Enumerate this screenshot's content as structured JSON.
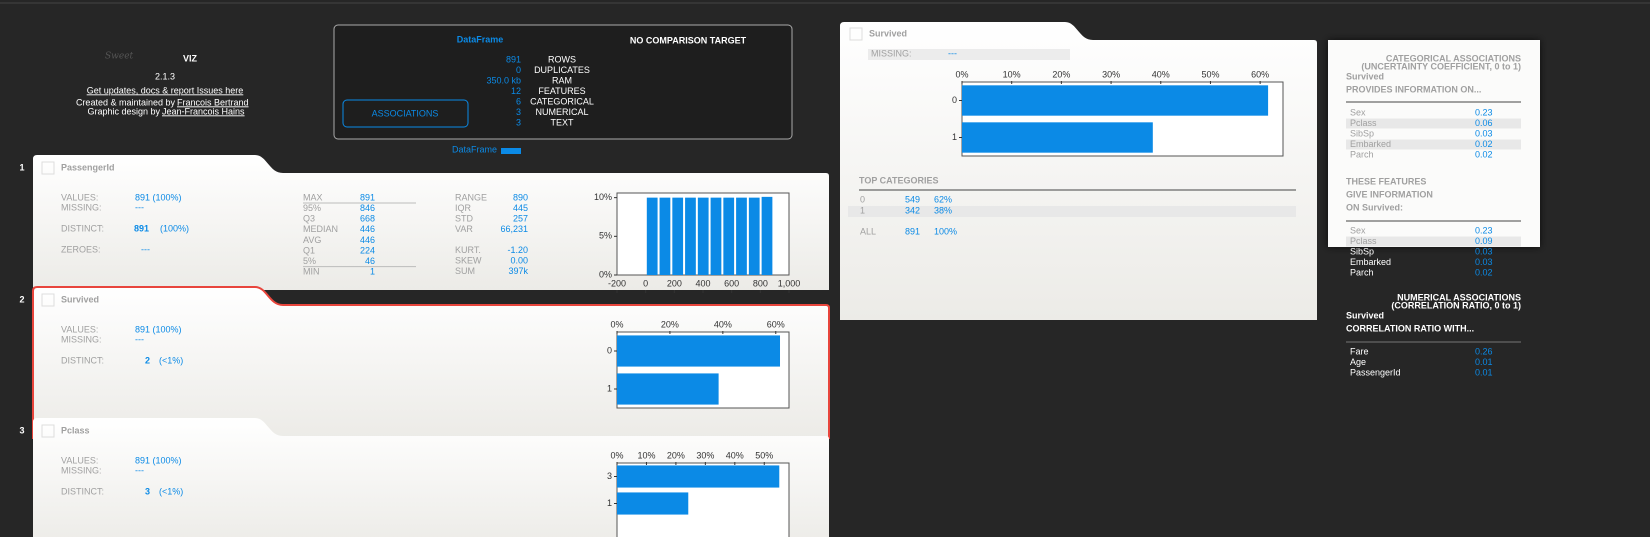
{
  "header": {
    "logo_sweet": "Sweet",
    "logo_viz": "VIZ",
    "version": "2.1.3",
    "link": "Get updates, docs & report Issues here",
    "created_by": "Created & maintained by",
    "author": "Francois Bertrand",
    "design_by": "Graphic design by",
    "designer": "Jean-Francois Hains"
  },
  "dataframe": {
    "title": "DataFrame",
    "stats": [
      {
        "value": "891",
        "label": "ROWS"
      },
      {
        "value": "0",
        "label": "DUPLICATES"
      },
      {
        "value": "350.0 kb",
        "label": "RAM"
      },
      {
        "value": "12",
        "label": "FEATURES"
      },
      {
        "value": "6",
        "label": "CATEGORICAL"
      },
      {
        "value": "3",
        "label": "NUMERICAL"
      },
      {
        "value": "3",
        "label": "TEXT"
      }
    ],
    "comparison": "NO COMPARISON TARGET",
    "button": "ASSOCIATIONS",
    "legend": "DataFrame",
    "legend_color": "#0b8ae6"
  },
  "features": [
    {
      "index": "1",
      "name": "PassengerId",
      "rows": [
        {
          "label": "VALUES:",
          "value": "891 (100%)"
        },
        {
          "label": "MISSING:",
          "value": "---"
        }
      ],
      "distinct": {
        "label": "DISTINCT:",
        "count": "891",
        "pct": "(100%)"
      },
      "zeroes": {
        "label": "ZEROES:",
        "value": "---"
      },
      "quantiles": [
        {
          "label": "MAX",
          "value": "891"
        },
        {
          "label": "95%",
          "value": "846"
        },
        {
          "label": "Q3",
          "value": "668"
        },
        {
          "label": "MEDIAN",
          "value": "446"
        },
        {
          "label": "AVG",
          "value": "446"
        },
        {
          "label": "Q1",
          "value": "224"
        },
        {
          "label": "5%",
          "value": "46"
        },
        {
          "label": "MIN",
          "value": "1"
        }
      ],
      "stats": [
        {
          "label": "RANGE",
          "value": "890"
        },
        {
          "label": "IQR",
          "value": "445"
        },
        {
          "label": "STD",
          "value": "257"
        },
        {
          "label": "VAR",
          "value": "66,231"
        },
        {
          "label": "KURT.",
          "value": "-1.20"
        },
        {
          "label": "SKEW",
          "value": "0.00"
        },
        {
          "label": "SUM",
          "value": "397k"
        }
      ],
      "chart": {
        "type": "histogram",
        "bins": [
          1,
          90,
          179,
          268,
          357,
          446,
          535,
          624,
          713,
          802,
          891
        ],
        "values": [
          10,
          10,
          10,
          10,
          10,
          10,
          10,
          10,
          10,
          10.1
        ],
        "color": "#0b8ae6",
        "xlim": [
          -200,
          1000
        ],
        "xticks": [
          -200,
          0,
          200,
          400,
          600,
          800,
          {
            "value": 1000,
            "label": "1,000"
          }
        ],
        "ylim": [
          0,
          10.6
        ],
        "yticks": [
          {
            "value": 0,
            "label": "0%"
          },
          {
            "value": 5,
            "label": "5%"
          },
          {
            "value": 10,
            "label": "10%"
          }
        ]
      }
    },
    {
      "index": "2",
      "name": "Survived",
      "selected": true,
      "rows": [
        {
          "label": "VALUES:",
          "value": "891 (100%)"
        },
        {
          "label": "MISSING:",
          "value": "---"
        }
      ],
      "distinct": {
        "label": "DISTINCT:",
        "count": "2",
        "pct": "(<1%)"
      },
      "chart": {
        "type": "hbar",
        "categories": [
          "0",
          "1"
        ],
        "values": [
          61.6,
          38.4
        ],
        "color": "#0b8ae6",
        "xlim": [
          0,
          65
        ],
        "xticks": [
          {
            "value": 0,
            "label": "0%"
          },
          {
            "value": 20,
            "label": "20%"
          },
          {
            "value": 40,
            "label": "40%"
          },
          {
            "value": 60,
            "label": "60%"
          }
        ]
      }
    },
    {
      "index": "3",
      "name": "Pclass",
      "rows": [
        {
          "label": "VALUES:",
          "value": "891 (100%)"
        },
        {
          "label": "MISSING:",
          "value": "---"
        }
      ],
      "distinct": {
        "label": "DISTINCT:",
        "count": "3",
        "pct": "(<1%)"
      },
      "chart": {
        "type": "hbar",
        "categories": [
          "3",
          "1"
        ],
        "values": [
          55.1,
          24.2
        ],
        "color": "#0b8ae6",
        "xlim": [
          0,
          58.4
        ],
        "xticks": [
          {
            "value": 0,
            "label": "0%"
          },
          {
            "value": 10,
            "label": "10%"
          },
          {
            "value": 20,
            "label": "20%"
          },
          {
            "value": 30,
            "label": "30%"
          },
          {
            "value": 40,
            "label": "40%"
          },
          {
            "value": 50,
            "label": "50%"
          }
        ]
      }
    }
  ],
  "detail": {
    "name": "Survived",
    "missing_label": "MISSING:",
    "missing_value": "---",
    "chart": {
      "type": "hbar",
      "categories": [
        "0",
        "1"
      ],
      "values": [
        61.6,
        38.4
      ],
      "color": "#0b8ae6",
      "xlim": [
        0,
        64.6
      ],
      "xticks": [
        {
          "value": 0,
          "label": "0%"
        },
        {
          "value": 10,
          "label": "10%"
        },
        {
          "value": 20,
          "label": "20%"
        },
        {
          "value": 30,
          "label": "30%"
        },
        {
          "value": 40,
          "label": "40%"
        },
        {
          "value": 50,
          "label": "50%"
        },
        {
          "value": 60,
          "label": "60%"
        }
      ]
    },
    "top_title": "TOP CATEGORIES",
    "top": [
      [
        "0",
        "549",
        "62%"
      ],
      [
        "1",
        "342",
        "38%"
      ]
    ],
    "all": [
      "ALL",
      "891",
      "100%"
    ]
  },
  "associations": {
    "cat_title": "CATEGORICAL ASSOCIATIONS",
    "cat_sub": "(UNCERTAINTY COEFFICIENT, 0 to 1)",
    "feature": "Survived",
    "provides": "PROVIDES INFORMATION ON...",
    "provides_rows": [
      [
        "Sex",
        "0.23"
      ],
      [
        "Pclass",
        "0.06"
      ],
      [
        "SibSp",
        "0.03"
      ],
      [
        "Embarked",
        "0.02"
      ],
      [
        "Parch",
        "0.02"
      ]
    ],
    "given_title": [
      "THESE FEATURES",
      "GIVE INFORMATION",
      "ON Survived:"
    ],
    "given_rows": [
      [
        "Sex",
        "0.23"
      ],
      [
        "Pclass",
        "0.09"
      ],
      [
        "SibSp",
        "0.03"
      ],
      [
        "Embarked",
        "0.03"
      ],
      [
        "Parch",
        "0.02"
      ]
    ],
    "num_title": "NUMERICAL ASSOCIATIONS",
    "num_sub": "(CORRELATION RATIO, 0 to 1)",
    "num_feature": "Survived",
    "num_with": "CORRELATION RATIO WITH...",
    "num_rows": [
      [
        "Fare",
        "0.26"
      ],
      [
        "Age",
        "0.01"
      ],
      [
        "PassengerId",
        "0.01"
      ]
    ]
  }
}
